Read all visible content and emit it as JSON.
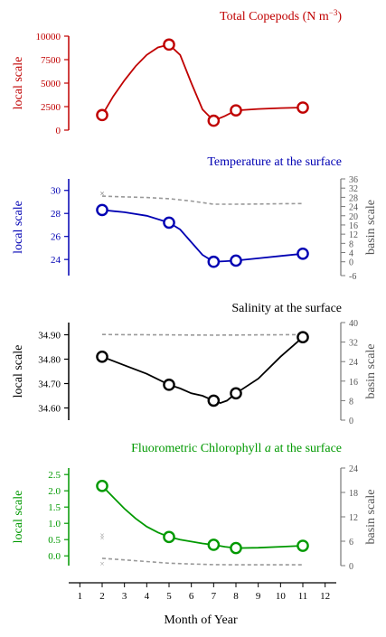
{
  "figure": {
    "xlabel": "Month of Year"
  },
  "chart_data": [
    {
      "type": "line",
      "title": "Total Copepods (N m",
      "title_sup": "−3",
      "title_close": ")",
      "color": "#c00000",
      "ylabel": "local scale",
      "ylim": [
        0,
        10000
      ],
      "yticks": [
        0,
        2500,
        5000,
        7500,
        10000
      ],
      "x": [
        2,
        5,
        7,
        8,
        11
      ],
      "y": [
        1600,
        9100,
        1000,
        2100,
        2400
      ],
      "curve_x": [
        2,
        2.5,
        3,
        3.5,
        4,
        4.5,
        5,
        5.5,
        6,
        6.5,
        7,
        7.5,
        8,
        9,
        10,
        11
      ],
      "curve_y": [
        1600,
        3600,
        5300,
        6800,
        8000,
        8800,
        9100,
        8000,
        5000,
        2200,
        1000,
        1500,
        2100,
        2250,
        2350,
        2400
      ]
    },
    {
      "type": "line",
      "title": "Temperature at the surface",
      "color": "#0000b3",
      "ylabel": "local scale",
      "ylabel_right": "basin scale",
      "ylim": [
        22.6,
        31
      ],
      "yticks": [
        24,
        26,
        28,
        30
      ],
      "ylim_right": [
        -6,
        36
      ],
      "yticks_right": [
        -6,
        0,
        4,
        8,
        12,
        16,
        20,
        24,
        28,
        32,
        36
      ],
      "x": [
        2,
        5,
        7,
        8,
        11
      ],
      "y": [
        28.3,
        27.2,
        23.8,
        23.9,
        24.5
      ],
      "curve_x": [
        2,
        3,
        4,
        5,
        5.5,
        6,
        6.5,
        7,
        7.5,
        8,
        9,
        10,
        11
      ],
      "curve_y": [
        28.3,
        28.1,
        27.8,
        27.2,
        26.6,
        25.5,
        24.4,
        23.8,
        23.85,
        23.9,
        24.1,
        24.3,
        24.5
      ],
      "basin_series": {
        "x": [
          2,
          3,
          4,
          5,
          6,
          7,
          8,
          9,
          10,
          11
        ],
        "y": [
          28.5,
          28.2,
          27.9,
          27.4,
          26.4,
          25.0,
          25.0,
          25.1,
          25.2,
          25.3
        ]
      },
      "outlier_points": [
        {
          "x": 2,
          "y": 29.8
        },
        {
          "x": 2,
          "y": 29.5
        }
      ]
    },
    {
      "type": "line",
      "title": "Salinity at the surface",
      "color": "#000000",
      "ylabel": "local scale",
      "ylabel_right": "basin scale",
      "ylim": [
        34.55,
        34.95
      ],
      "yticks": [
        34.6,
        34.7,
        34.8,
        34.9
      ],
      "ytick_labels": [
        "34.60",
        "34.70",
        "34.80",
        "34.90"
      ],
      "ylim_right": [
        0,
        40
      ],
      "yticks_right": [
        0,
        8,
        16,
        24,
        32,
        40
      ],
      "x": [
        2,
        5,
        7,
        8,
        11
      ],
      "y": [
        34.81,
        34.695,
        34.63,
        34.66,
        34.89
      ],
      "curve_x": [
        2,
        3,
        4,
        5,
        5.5,
        6,
        6.5,
        7,
        7.3,
        7.6,
        8,
        9,
        10,
        11
      ],
      "curve_y": [
        34.81,
        34.775,
        34.74,
        34.695,
        34.68,
        34.66,
        34.65,
        34.63,
        34.62,
        34.63,
        34.66,
        34.72,
        34.81,
        34.89
      ],
      "basin_series": {
        "x": [
          2,
          3,
          4,
          5,
          6,
          7,
          8,
          9,
          10,
          11
        ],
        "y": [
          35.1,
          35.05,
          35.0,
          34.95,
          34.9,
          34.85,
          34.9,
          34.95,
          35.0,
          35.05
        ]
      }
    },
    {
      "type": "line",
      "title": "Fluorometric Chlorophyll ",
      "title_italic": "a",
      "title_tail": " at the surface",
      "color": "#009900",
      "ylabel": "local scale",
      "ylabel_right": "basin scale",
      "ylim": [
        -0.3,
        2.7
      ],
      "yticks": [
        0,
        0.5,
        1.0,
        1.5,
        2.0,
        2.5
      ],
      "ytick_labels": [
        "0.0",
        "0.5",
        "1.0",
        "1.5",
        "2.0",
        "2.5"
      ],
      "ylim_right": [
        0,
        24
      ],
      "yticks_right": [
        0,
        6,
        12,
        18,
        24
      ],
      "x": [
        2,
        5,
        7,
        8,
        11
      ],
      "y": [
        2.15,
        0.58,
        0.34,
        0.24,
        0.31
      ],
      "curve_x": [
        2,
        2.5,
        3,
        3.5,
        4,
        4.5,
        5,
        5.5,
        6,
        6.5,
        7,
        7.5,
        8,
        9,
        10,
        11
      ],
      "curve_y": [
        2.15,
        1.8,
        1.45,
        1.15,
        0.9,
        0.72,
        0.58,
        0.5,
        0.44,
        0.38,
        0.34,
        0.28,
        0.24,
        0.25,
        0.28,
        0.31
      ],
      "basin_series": {
        "x": [
          2,
          3,
          4,
          5,
          6,
          7,
          8,
          9,
          10,
          11
        ],
        "y": [
          1.8,
          1.4,
          1.0,
          0.6,
          0.4,
          0.25,
          0.2,
          0.2,
          0.2,
          0.2
        ]
      },
      "outlier_points": [
        {
          "x": 2,
          "y": 7.5
        },
        {
          "x": 2,
          "y": 6.8
        },
        {
          "x": 2,
          "y": 0.5
        }
      ]
    }
  ],
  "x_axis": {
    "xlim": [
      0.5,
      12.5
    ],
    "ticks": [
      1,
      2,
      3,
      4,
      5,
      6,
      7,
      8,
      9,
      10,
      11,
      12
    ]
  },
  "colors": {
    "basin_line": "#999999",
    "axis": "#000000",
    "background": "#ffffff"
  }
}
